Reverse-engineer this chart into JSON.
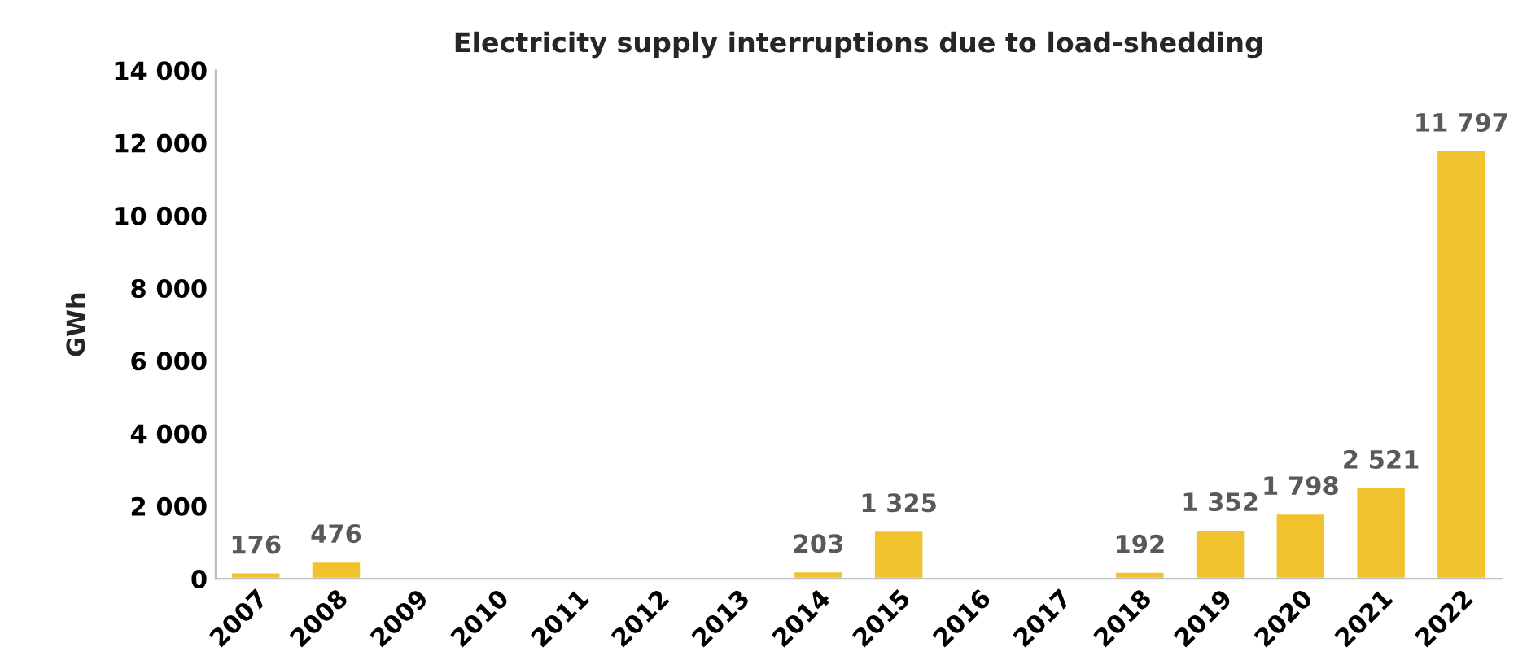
{
  "chart_data": {
    "type": "bar",
    "title": "Electricity supply interruptions due to load-shedding",
    "ylabel": "GWh",
    "categories": [
      "2007",
      "2008",
      "2009",
      "2010",
      "2011",
      "2012",
      "2013",
      "2014",
      "2015",
      "2016",
      "2017",
      "2018",
      "2019",
      "2020",
      "2021",
      "2022"
    ],
    "values": [
      176,
      476,
      null,
      null,
      null,
      null,
      null,
      203,
      1325,
      null,
      null,
      192,
      1352,
      1798,
      2521,
      11797
    ],
    "value_labels": [
      "176",
      "476",
      null,
      null,
      null,
      null,
      null,
      "203",
      "1 325",
      null,
      null,
      "192",
      "1 352",
      "1 798",
      "2 521",
      "11 797"
    ],
    "color": "#f0c22e",
    "ylim": [
      0,
      14000
    ],
    "yticks": [
      {
        "value": 0,
        "label": "0"
      },
      {
        "value": 2000,
        "label": "2 000"
      },
      {
        "value": 4000,
        "label": "4 000"
      },
      {
        "value": 6000,
        "label": "6 000"
      },
      {
        "value": 8000,
        "label": "8 000"
      },
      {
        "value": 10000,
        "label": "10 000"
      },
      {
        "value": 12000,
        "label": "12 000"
      },
      {
        "value": 14000,
        "label": "14 000"
      }
    ],
    "grid": false,
    "legend": false
  }
}
